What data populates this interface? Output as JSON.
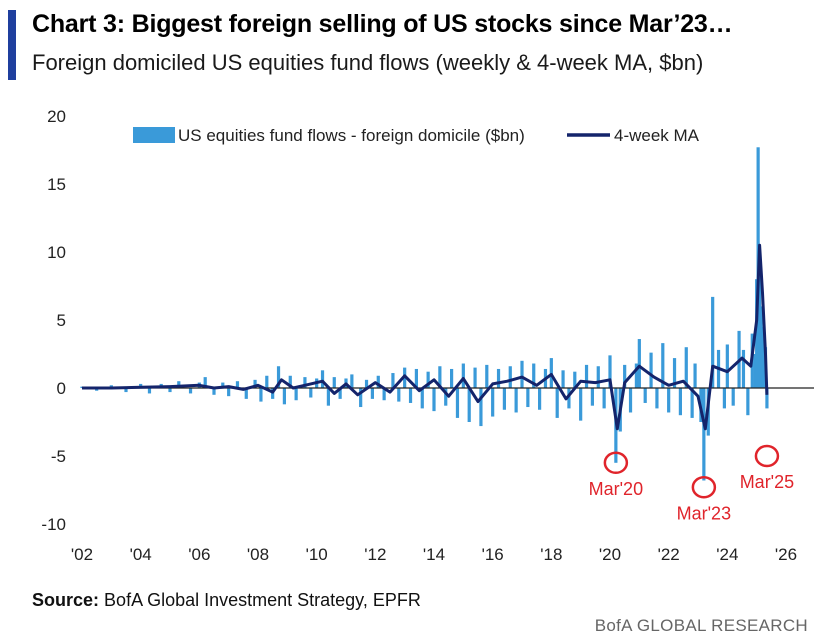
{
  "header": {
    "title": "Chart 3: Biggest foreign selling of US stocks since Mar’23…",
    "subtitle": "Foreign domiciled US equities fund flows (weekly & 4-week MA, $bn)"
  },
  "footer": {
    "source_label": "Source:",
    "source_text": "BofA Global Investment Strategy, EPFR",
    "brand": "BofA GLOBAL RESEARCH"
  },
  "colors": {
    "accent": "#1f3f9e",
    "weekly": "#3a9ad9",
    "ma": "#14246b",
    "annotation": "#e0242b"
  },
  "chart_data": {
    "type": "bar",
    "title": "",
    "xlabel": "",
    "ylabel": "",
    "ylim": [
      -10,
      20
    ],
    "yticks": [
      20,
      15,
      10,
      5,
      0,
      -5,
      -10
    ],
    "xlim": [
      2002,
      2026
    ],
    "xticks": [
      {
        "value": 2002,
        "label": "'02"
      },
      {
        "value": 2004,
        "label": "'04"
      },
      {
        "value": 2006,
        "label": "'06"
      },
      {
        "value": 2008,
        "label": "'08"
      },
      {
        "value": 2010,
        "label": "'10"
      },
      {
        "value": 2012,
        "label": "'12"
      },
      {
        "value": 2014,
        "label": "'14"
      },
      {
        "value": 2016,
        "label": "'16"
      },
      {
        "value": 2018,
        "label": "'18"
      },
      {
        "value": 2020,
        "label": "'20"
      },
      {
        "value": 2022,
        "label": "'22"
      },
      {
        "value": 2024,
        "label": "'24"
      },
      {
        "value": 2026,
        "label": "'26"
      }
    ],
    "legend_position": "top",
    "series": [
      {
        "name": "US equities fund flows - foreign domicile ($bn)",
        "type": "bar",
        "points": [
          [
            2002.0,
            0.1
          ],
          [
            2002.5,
            -0.2
          ],
          [
            2003.0,
            0.2
          ],
          [
            2003.5,
            -0.3
          ],
          [
            2004.0,
            0.3
          ],
          [
            2004.3,
            -0.4
          ],
          [
            2004.7,
            0.3
          ],
          [
            2005.0,
            -0.3
          ],
          [
            2005.3,
            0.5
          ],
          [
            2005.7,
            -0.4
          ],
          [
            2006.0,
            0.4
          ],
          [
            2006.2,
            0.8
          ],
          [
            2006.5,
            -0.5
          ],
          [
            2006.8,
            0.4
          ],
          [
            2007.0,
            -0.6
          ],
          [
            2007.3,
            0.5
          ],
          [
            2007.6,
            -0.8
          ],
          [
            2007.9,
            0.6
          ],
          [
            2008.1,
            -1.0
          ],
          [
            2008.3,
            0.9
          ],
          [
            2008.5,
            -0.8
          ],
          [
            2008.7,
            1.6
          ],
          [
            2008.9,
            -1.2
          ],
          [
            2009.1,
            0.9
          ],
          [
            2009.3,
            -0.9
          ],
          [
            2009.6,
            0.8
          ],
          [
            2009.8,
            -0.7
          ],
          [
            2010.0,
            0.7
          ],
          [
            2010.2,
            1.3
          ],
          [
            2010.4,
            -1.3
          ],
          [
            2010.6,
            0.8
          ],
          [
            2010.8,
            -0.8
          ],
          [
            2011.0,
            0.7
          ],
          [
            2011.2,
            1.0
          ],
          [
            2011.5,
            -1.4
          ],
          [
            2011.7,
            0.6
          ],
          [
            2011.9,
            -0.8
          ],
          [
            2012.1,
            0.9
          ],
          [
            2012.3,
            -0.9
          ],
          [
            2012.6,
            1.1
          ],
          [
            2012.8,
            -1.0
          ],
          [
            2013.0,
            1.5
          ],
          [
            2013.2,
            -1.1
          ],
          [
            2013.4,
            1.4
          ],
          [
            2013.6,
            -1.5
          ],
          [
            2013.8,
            1.2
          ],
          [
            2014.0,
            -1.7
          ],
          [
            2014.2,
            1.6
          ],
          [
            2014.4,
            -1.3
          ],
          [
            2014.6,
            1.4
          ],
          [
            2014.8,
            -2.2
          ],
          [
            2015.0,
            1.8
          ],
          [
            2015.2,
            -2.5
          ],
          [
            2015.4,
            1.5
          ],
          [
            2015.6,
            -2.8
          ],
          [
            2015.8,
            1.7
          ],
          [
            2016.0,
            -2.1
          ],
          [
            2016.2,
            1.4
          ],
          [
            2016.4,
            -1.6
          ],
          [
            2016.6,
            1.6
          ],
          [
            2016.8,
            -1.8
          ],
          [
            2017.0,
            2.0
          ],
          [
            2017.2,
            -1.4
          ],
          [
            2017.4,
            1.8
          ],
          [
            2017.6,
            -1.6
          ],
          [
            2017.8,
            1.4
          ],
          [
            2018.0,
            2.2
          ],
          [
            2018.2,
            -2.2
          ],
          [
            2018.4,
            1.3
          ],
          [
            2018.6,
            -1.5
          ],
          [
            2018.8,
            1.2
          ],
          [
            2019.0,
            -2.4
          ],
          [
            2019.2,
            1.7
          ],
          [
            2019.4,
            -1.3
          ],
          [
            2019.6,
            1.6
          ],
          [
            2019.8,
            -1.5
          ],
          [
            2020.0,
            2.4
          ],
          [
            2020.2,
            -5.5
          ],
          [
            2020.35,
            -3.2
          ],
          [
            2020.5,
            1.7
          ],
          [
            2020.7,
            -1.8
          ],
          [
            2020.9,
            1.8
          ],
          [
            2021.0,
            3.6
          ],
          [
            2021.2,
            -1.1
          ],
          [
            2021.4,
            2.6
          ],
          [
            2021.6,
            -1.5
          ],
          [
            2021.8,
            3.3
          ],
          [
            2022.0,
            -1.8
          ],
          [
            2022.2,
            2.2
          ],
          [
            2022.4,
            -2.0
          ],
          [
            2022.6,
            3.0
          ],
          [
            2022.8,
            -2.2
          ],
          [
            2022.9,
            1.8
          ],
          [
            2023.1,
            -2.5
          ],
          [
            2023.2,
            -6.8
          ],
          [
            2023.35,
            -3.5
          ],
          [
            2023.5,
            6.7
          ],
          [
            2023.7,
            2.8
          ],
          [
            2023.9,
            -1.5
          ],
          [
            2024.0,
            3.2
          ],
          [
            2024.2,
            -1.3
          ],
          [
            2024.4,
            4.2
          ],
          [
            2024.55,
            2.8
          ],
          [
            2024.7,
            -2.0
          ],
          [
            2024.85,
            4.0
          ],
          [
            2024.95,
            2.5
          ],
          [
            2025.0,
            8.0
          ],
          [
            2025.05,
            17.7
          ],
          [
            2025.1,
            9.5
          ],
          [
            2025.15,
            6.0
          ],
          [
            2025.2,
            4.5
          ],
          [
            2025.3,
            3.0
          ],
          [
            2025.35,
            -1.5
          ]
        ]
      },
      {
        "name": "4-week MA",
        "type": "line",
        "points": [
          [
            2002.0,
            0.0
          ],
          [
            2003.0,
            0.0
          ],
          [
            2004.0,
            0.05
          ],
          [
            2005.0,
            0.1
          ],
          [
            2006.0,
            0.2
          ],
          [
            2006.5,
            0.0
          ],
          [
            2007.0,
            0.1
          ],
          [
            2007.5,
            -0.1
          ],
          [
            2008.0,
            0.2
          ],
          [
            2008.5,
            -0.3
          ],
          [
            2008.8,
            0.6
          ],
          [
            2009.2,
            0.0
          ],
          [
            2009.8,
            0.3
          ],
          [
            2010.2,
            0.5
          ],
          [
            2010.6,
            -0.4
          ],
          [
            2011.0,
            0.3
          ],
          [
            2011.4,
            -0.5
          ],
          [
            2012.0,
            0.4
          ],
          [
            2012.5,
            -0.3
          ],
          [
            2013.0,
            0.9
          ],
          [
            2013.5,
            -0.2
          ],
          [
            2014.0,
            0.6
          ],
          [
            2014.5,
            -0.6
          ],
          [
            2015.0,
            0.7
          ],
          [
            2015.5,
            -1.0
          ],
          [
            2016.0,
            0.3
          ],
          [
            2016.5,
            0.5
          ],
          [
            2017.0,
            0.8
          ],
          [
            2017.5,
            0.2
          ],
          [
            2018.0,
            1.0
          ],
          [
            2018.5,
            -0.8
          ],
          [
            2019.0,
            0.5
          ],
          [
            2019.5,
            0.4
          ],
          [
            2020.0,
            0.6
          ],
          [
            2020.25,
            -3.0
          ],
          [
            2020.5,
            0.4
          ],
          [
            2021.0,
            1.6
          ],
          [
            2021.5,
            0.8
          ],
          [
            2022.0,
            0.2
          ],
          [
            2022.5,
            0.5
          ],
          [
            2023.0,
            -0.6
          ],
          [
            2023.25,
            -3.0
          ],
          [
            2023.5,
            1.6
          ],
          [
            2024.0,
            1.2
          ],
          [
            2024.5,
            2.2
          ],
          [
            2024.8,
            1.6
          ],
          [
            2025.0,
            5.0
          ],
          [
            2025.1,
            10.5
          ],
          [
            2025.2,
            7.0
          ],
          [
            2025.3,
            2.5
          ],
          [
            2025.35,
            -0.5
          ]
        ]
      }
    ],
    "annotations": [
      {
        "label": "Mar'20",
        "x": 2020.2,
        "y": -5.5
      },
      {
        "label": "Mar'23",
        "x": 2023.2,
        "y": -7.3
      },
      {
        "label": "Mar'25",
        "x": 2025.35,
        "y": -5.0
      }
    ]
  }
}
